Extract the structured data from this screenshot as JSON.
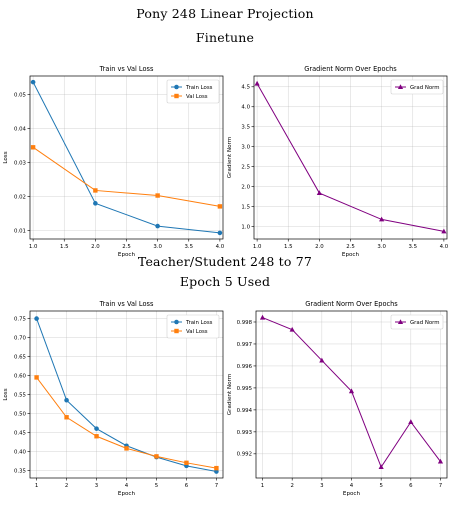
{
  "headings": {
    "model": "Pony 248 Linear Projection",
    "finetune": "Finetune",
    "teacher_student": "Teacher/Student 248 to 77",
    "epoch_used": "Epoch 5 Used"
  },
  "colors": {
    "train": "#1f77b4",
    "val": "#ff7f0e",
    "grad": "#800080",
    "grid": "#b0b0b0"
  },
  "chart_data": [
    {
      "type": "line",
      "title": "Train vs Val Loss",
      "xlabel": "Epoch",
      "ylabel": "Loss",
      "x": [
        1,
        2,
        3,
        4
      ],
      "xlim": [
        0.95,
        4.05
      ],
      "ylim": [
        0.0075,
        0.0555
      ],
      "xticks": [
        1.0,
        1.5,
        2.0,
        2.5,
        3.0,
        3.5,
        4.0
      ],
      "xtick_labels": [
        "1.0",
        "1.5",
        "2.0",
        "2.5",
        "3.0",
        "3.5",
        "4.0"
      ],
      "yticks": [
        0.01,
        0.02,
        0.03,
        0.04,
        0.05
      ],
      "ytick_labels": [
        "0.01",
        "0.02",
        "0.03",
        "0.04",
        "0.05"
      ],
      "grid": true,
      "legend": "top-right",
      "series": [
        {
          "name": "Train Loss",
          "marker": "circle",
          "values": [
            0.0537,
            0.018,
            0.0113,
            0.0093
          ]
        },
        {
          "name": "Val Loss",
          "marker": "square",
          "values": [
            0.0345,
            0.0218,
            0.0203,
            0.0171
          ]
        }
      ]
    },
    {
      "type": "line",
      "title": "Gradient Norm Over Epochs",
      "xlabel": "Epoch",
      "ylabel": "Gradient Norm",
      "x": [
        1,
        2,
        3,
        4
      ],
      "xlim": [
        0.95,
        4.05
      ],
      "ylim": [
        0.69,
        4.77
      ],
      "xticks": [
        1.0,
        1.5,
        2.0,
        2.5,
        3.0,
        3.5,
        4.0
      ],
      "xtick_labels": [
        "1.0",
        "1.5",
        "2.0",
        "2.5",
        "3.0",
        "3.5",
        "4.0"
      ],
      "yticks": [
        1.0,
        1.5,
        2.0,
        2.5,
        3.0,
        3.5,
        4.0,
        4.5
      ],
      "ytick_labels": [
        "1.0",
        "1.5",
        "2.0",
        "2.5",
        "3.0",
        "3.5",
        "4.0",
        "4.5"
      ],
      "grid": true,
      "legend": "top-right",
      "series": [
        {
          "name": "Grad Norm",
          "marker": "triangle",
          "values": [
            4.58,
            1.84,
            1.18,
            0.88
          ]
        }
      ]
    },
    {
      "type": "line",
      "title": "Train vs Val Loss",
      "xlabel": "Epoch",
      "ylabel": "Loss",
      "x": [
        1,
        2,
        3,
        4,
        5,
        6,
        7
      ],
      "xlim": [
        0.78,
        7.22
      ],
      "ylim": [
        0.33,
        0.77
      ],
      "xticks": [
        1,
        2,
        3,
        4,
        5,
        6,
        7
      ],
      "xtick_labels": [
        "1",
        "2",
        "3",
        "4",
        "5",
        "6",
        "7"
      ],
      "yticks": [
        0.35,
        0.4,
        0.45,
        0.5,
        0.55,
        0.6,
        0.65,
        0.7,
        0.75
      ],
      "ytick_labels": [
        "0.35",
        "0.40",
        "0.45",
        "0.50",
        "0.55",
        "0.60",
        "0.65",
        "0.70",
        "0.75"
      ],
      "grid": true,
      "legend": "top-right",
      "series": [
        {
          "name": "Train Loss",
          "marker": "circle",
          "values": [
            0.75,
            0.535,
            0.46,
            0.415,
            0.385,
            0.362,
            0.347
          ]
        },
        {
          "name": "Val Loss",
          "marker": "square",
          "values": [
            0.595,
            0.49,
            0.44,
            0.408,
            0.387,
            0.37,
            0.356
          ]
        }
      ]
    },
    {
      "type": "line",
      "title": "Gradient Norm Over Epochs",
      "xlabel": "Epoch",
      "ylabel": "Gradient Norm",
      "x": [
        1,
        2,
        3,
        4,
        5,
        6,
        7
      ],
      "xlim": [
        0.78,
        7.22
      ],
      "ylim": [
        0.9909,
        0.9985
      ],
      "xticks": [
        1,
        2,
        3,
        4,
        5,
        6,
        7
      ],
      "xtick_labels": [
        "1",
        "2",
        "3",
        "4",
        "5",
        "6",
        "7"
      ],
      "yticks": [
        0.992,
        0.993,
        0.994,
        0.995,
        0.996,
        0.997,
        0.998
      ],
      "ytick_labels": [
        "0.992",
        "0.993",
        "0.994",
        "0.995",
        "0.996",
        "0.997",
        "0.998"
      ],
      "grid": true,
      "legend": "top-right",
      "series": [
        {
          "name": "Grad Norm",
          "marker": "triangle",
          "values": [
            0.9982,
            0.99765,
            0.99625,
            0.99485,
            0.9914,
            0.99345,
            0.99165
          ]
        }
      ]
    }
  ]
}
